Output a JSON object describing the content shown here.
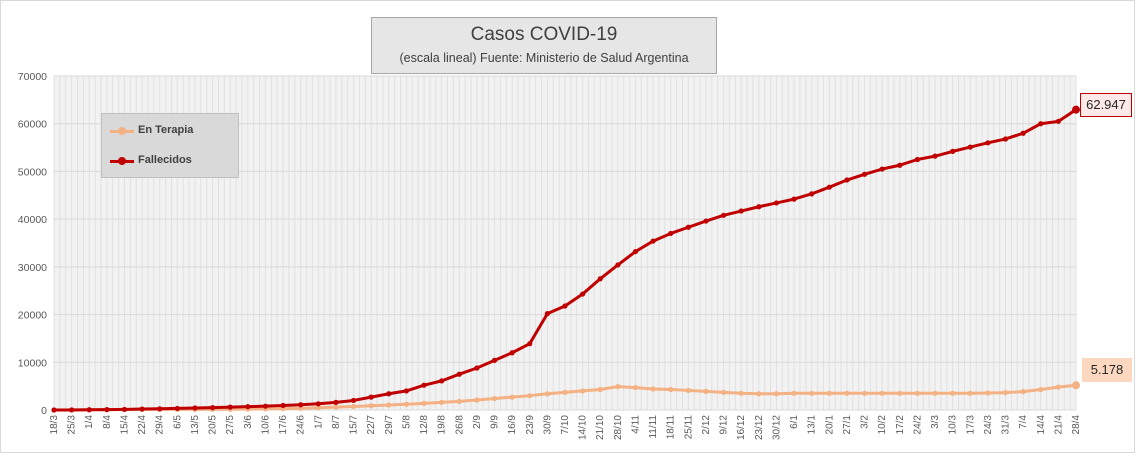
{
  "chart_data": {
    "type": "line",
    "title": "Casos COVID-19",
    "subtitle": "(escala lineal) Fuente: Ministerio de Salud Argentina",
    "ylim": [
      0,
      70000
    ],
    "y_ticks": [
      "0",
      "10000",
      "20000",
      "30000",
      "40000",
      "50000",
      "60000",
      "70000"
    ],
    "categories": [
      "18/3",
      "25/3",
      "1/4",
      "8/4",
      "15/4",
      "22/4",
      "29/4",
      "6/5",
      "13/5",
      "20/5",
      "27/5",
      "3/6",
      "10/6",
      "17/6",
      "24/6",
      "1/7",
      "8/7",
      "15/7",
      "22/7",
      "29/7",
      "5/8",
      "12/8",
      "19/8",
      "26/8",
      "2/9",
      "9/9",
      "16/9",
      "23/9",
      "30/9",
      "7/10",
      "14/10",
      "21/10",
      "28/10",
      "4/11",
      "11/11",
      "18/11",
      "25/11",
      "2/12",
      "9/12",
      "16/12",
      "23/12",
      "30/12",
      "6/1",
      "13/1",
      "20/1",
      "27/1",
      "3/2",
      "10/2",
      "17/2",
      "24/2",
      "3/3",
      "10/3",
      "17/3",
      "24/3",
      "31/3",
      "7/4",
      "14/4",
      "21/4",
      "28/4"
    ],
    "grid": true,
    "legend_position": "top-left",
    "series": [
      {
        "name": "En Terapia",
        "color": "#f4b183",
        "values": [
          10,
          30,
          60,
          90,
          110,
          120,
          120,
          120,
          130,
          140,
          150,
          190,
          230,
          280,
          350,
          470,
          600,
          740,
          880,
          1050,
          1200,
          1400,
          1600,
          1800,
          2100,
          2400,
          2700,
          3000,
          3400,
          3700,
          4000,
          4300,
          4900,
          4700,
          4400,
          4300,
          4100,
          3900,
          3700,
          3500,
          3400,
          3400,
          3500,
          3500,
          3500,
          3500,
          3500,
          3500,
          3500,
          3500,
          3500,
          3500,
          3500,
          3550,
          3650,
          3850,
          4300,
          4800,
          5178
        ]
      },
      {
        "name": "Fallecidos",
        "color": "#c00000",
        "values": [
          2,
          10,
          50,
          80,
          120,
          200,
          250,
          330,
          420,
          500,
          600,
          700,
          800,
          950,
          1100,
          1300,
          1600,
          2000,
          2700,
          3400,
          4000,
          5200,
          6100,
          7500,
          8800,
          10400,
          12000,
          13900,
          20200,
          21800,
          24300,
          27500,
          30400,
          33200,
          35400,
          37000,
          38300,
          39600,
          40800,
          41700,
          42600,
          43400,
          44200,
          45300,
          46700,
          48200,
          49400,
          50500,
          51300,
          52500,
          53200,
          54200,
          55100,
          56000,
          56800,
          58000,
          60000,
          60500,
          62947
        ]
      }
    ],
    "annotations": {
      "fallecidos_last": "62.947",
      "terapia_last": "5.178"
    }
  }
}
